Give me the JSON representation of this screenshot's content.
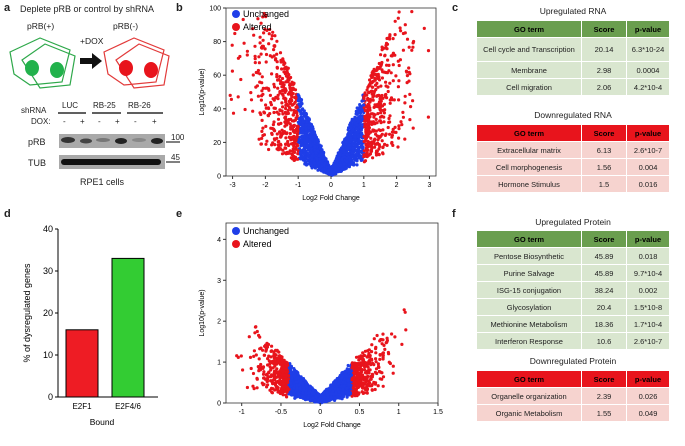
{
  "panel_a": {
    "label": "a",
    "title": "Deplete pRB or control by shRNA",
    "cell_pos": "pRB(+)",
    "cell_neg": "pRB(-)",
    "dox_arrow": "+DOX",
    "shrna_label": "shRNA",
    "dox_label": "DOX:",
    "lanes": [
      "LUC",
      "RB-25",
      "RB-26"
    ],
    "dox_signs": [
      "-",
      "+",
      "-",
      "+",
      "-",
      "+"
    ],
    "blot_rows": [
      "pRB",
      "TUB"
    ],
    "markers": [
      "100",
      "45"
    ],
    "caption": "RPE1 cells"
  },
  "panel_b": {
    "label": "b",
    "legend": [
      "Unchanged",
      "Altered"
    ]
  },
  "panel_c": {
    "label": "c",
    "up_title": "Upregulated RNA",
    "up_header": [
      "GO term",
      "Score",
      "p-value"
    ],
    "up_rows": [
      [
        "Cell cycle and Transcription",
        "20.14",
        "6.3*10-24"
      ],
      [
        "Membrane",
        "2.98",
        "0.0004"
      ],
      [
        "Cell migration",
        "2.06",
        "4.2*10-4"
      ]
    ],
    "down_title": "Downregulated RNA",
    "down_header": [
      "GO term",
      "Score",
      "p-value"
    ],
    "down_rows": [
      [
        "Extracellular matrix",
        "6.13",
        "2.6*10-7"
      ],
      [
        "Cell morphogenesis",
        "1.56",
        "0.004"
      ],
      [
        "Hormone Stimulus",
        "1.5",
        "0.016"
      ]
    ]
  },
  "panel_d": {
    "label": "d"
  },
  "panel_e": {
    "label": "e",
    "legend": [
      "Unchanged",
      "Altered"
    ]
  },
  "panel_f": {
    "label": "f",
    "up_title": "Upregulated Protein",
    "up_header": [
      "GO term",
      "Score",
      "p-value"
    ],
    "up_rows": [
      [
        "Pentose Biosynthetic",
        "45.89",
        "0.018"
      ],
      [
        "Purine Salvage",
        "45.89",
        "9.7*10-4"
      ],
      [
        "ISG-15 conjugation",
        "38.24",
        "0.002"
      ],
      [
        "Glycosylation",
        "20.4",
        "1.5*10-8"
      ],
      [
        "Methionine Metabolism",
        "18.36",
        "1.7*10-4"
      ],
      [
        "Interferon Response",
        "10.6",
        "2.6*10-7"
      ]
    ],
    "down_title": "Downregulated Protein",
    "down_header": [
      "GO term",
      "Score",
      "p-value"
    ],
    "down_rows": [
      [
        "Organelle organization",
        "2.39",
        "0.026"
      ],
      [
        "Organic Metabolism",
        "1.55",
        "0.049"
      ]
    ]
  },
  "colors": {
    "unchanged": "#1f3ee8",
    "altered": "#e8141c",
    "green_header": "#6a9e4f",
    "green_row": "#d9e6cf",
    "red_header": "#e8141c",
    "red_row": "#f6d3cf",
    "bar_e2f1": "#ee1c24",
    "bar_e2f4": "#33cc33"
  },
  "chart_data": [
    {
      "type": "scatter",
      "name": "rna-volcano",
      "title": "",
      "xlabel": "Log2 Fold Change",
      "ylabel": "Log10(p-value)",
      "xlim": [
        -3.2,
        3.2
      ],
      "ylim": [
        0,
        100
      ],
      "xticks": [
        -3,
        -2,
        -1,
        0,
        1,
        2,
        3
      ],
      "yticks": [
        0,
        20,
        40,
        60,
        80,
        100
      ],
      "threshold": 1,
      "series": [
        {
          "name": "Unchanged"
        },
        {
          "name": "Altered"
        }
      ]
    },
    {
      "type": "bar",
      "name": "bound-bar",
      "categories": [
        "E2F1",
        "E2F4/6"
      ],
      "values": [
        16,
        33
      ],
      "xlabel": "Bound",
      "ylabel": "% of dysregulated genes",
      "ylim": [
        0,
        40
      ],
      "yticks": [
        0,
        10,
        20,
        30,
        40
      ]
    },
    {
      "type": "scatter",
      "name": "protein-volcano",
      "title": "",
      "xlabel": "Log2 Fold Change",
      "ylabel": "Log10(p-value)",
      "xlim": [
        -1.2,
        1.5
      ],
      "ylim": [
        0,
        4.4
      ],
      "xticks": [
        -1.0,
        -0.5,
        0.0,
        0.5,
        1.0,
        1.5
      ],
      "yticks": [
        0,
        1,
        2,
        3,
        4
      ],
      "threshold": 0.4,
      "series": [
        {
          "name": "Unchanged"
        },
        {
          "name": "Altered"
        }
      ]
    }
  ]
}
